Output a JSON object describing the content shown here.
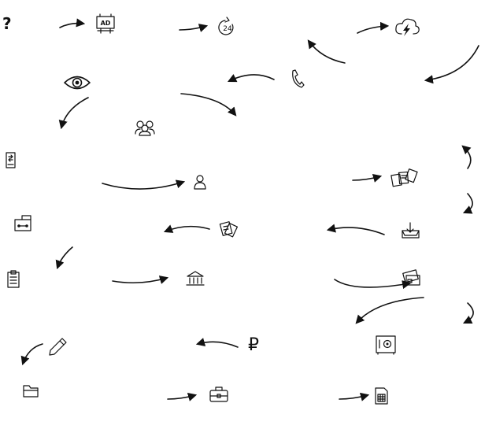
{
  "diagram": {
    "question_mark": "?",
    "billboard_text": "AD",
    "clock_number": "24",
    "ruble_symbol": "₽",
    "icons": [
      "billboard-icon",
      "clock-24-icon",
      "cloud-lightning-icon",
      "eye-icon",
      "phone-icon",
      "users-group-icon",
      "mobile-transfer-icon",
      "user-icon",
      "documents-icon",
      "mailbox-icon",
      "paper-exchange-icon",
      "inbox-download-icon",
      "clipboard-list-icon",
      "bank-icon",
      "wallet-icon",
      "pencil-icon",
      "safe-icon",
      "folder-icon",
      "briefcase-icon",
      "calculator-document-icon"
    ]
  }
}
